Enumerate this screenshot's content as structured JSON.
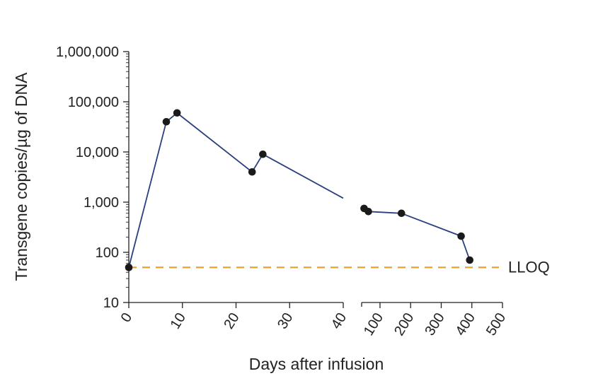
{
  "chart_data": {
    "type": "line",
    "xlabel": "Days after infusion",
    "ylabel": "Transgene copies/µg of DNA",
    "y_scale": "log",
    "ylim": [
      10,
      1000000
    ],
    "y_ticks": [
      10,
      100,
      1000,
      10000,
      100000,
      1000000
    ],
    "y_tick_labels": [
      "10",
      "100",
      "1,000",
      "10,000",
      "100,000",
      "1,000,000"
    ],
    "x_axis_broken": true,
    "x_segments": [
      {
        "xlim": [
          0,
          40
        ],
        "ticks": [
          0,
          10,
          20,
          30,
          40
        ],
        "tick_labels": [
          "0",
          "10",
          "20",
          "30",
          "40"
        ]
      },
      {
        "xlim": [
          40,
          500
        ],
        "ticks": [
          100,
          200,
          300,
          400,
          500
        ],
        "tick_labels": [
          "100",
          "200",
          "300",
          "400",
          "500"
        ]
      }
    ],
    "series": [
      {
        "color": "#2b3f7e",
        "x": [
          0,
          7,
          9,
          23,
          25,
          40,
          48,
          62,
          170,
          365,
          393
        ],
        "y": [
          50,
          40000,
          60000,
          4000,
          9000,
          1200,
          750,
          650,
          600,
          210,
          70
        ],
        "markers": [
          true,
          true,
          true,
          true,
          true,
          false,
          true,
          true,
          true,
          true,
          true
        ]
      }
    ],
    "reference_line": {
      "y": 50,
      "label": "LLOQ",
      "color": "#e8a02e",
      "style": "dashed"
    },
    "grid": false
  }
}
